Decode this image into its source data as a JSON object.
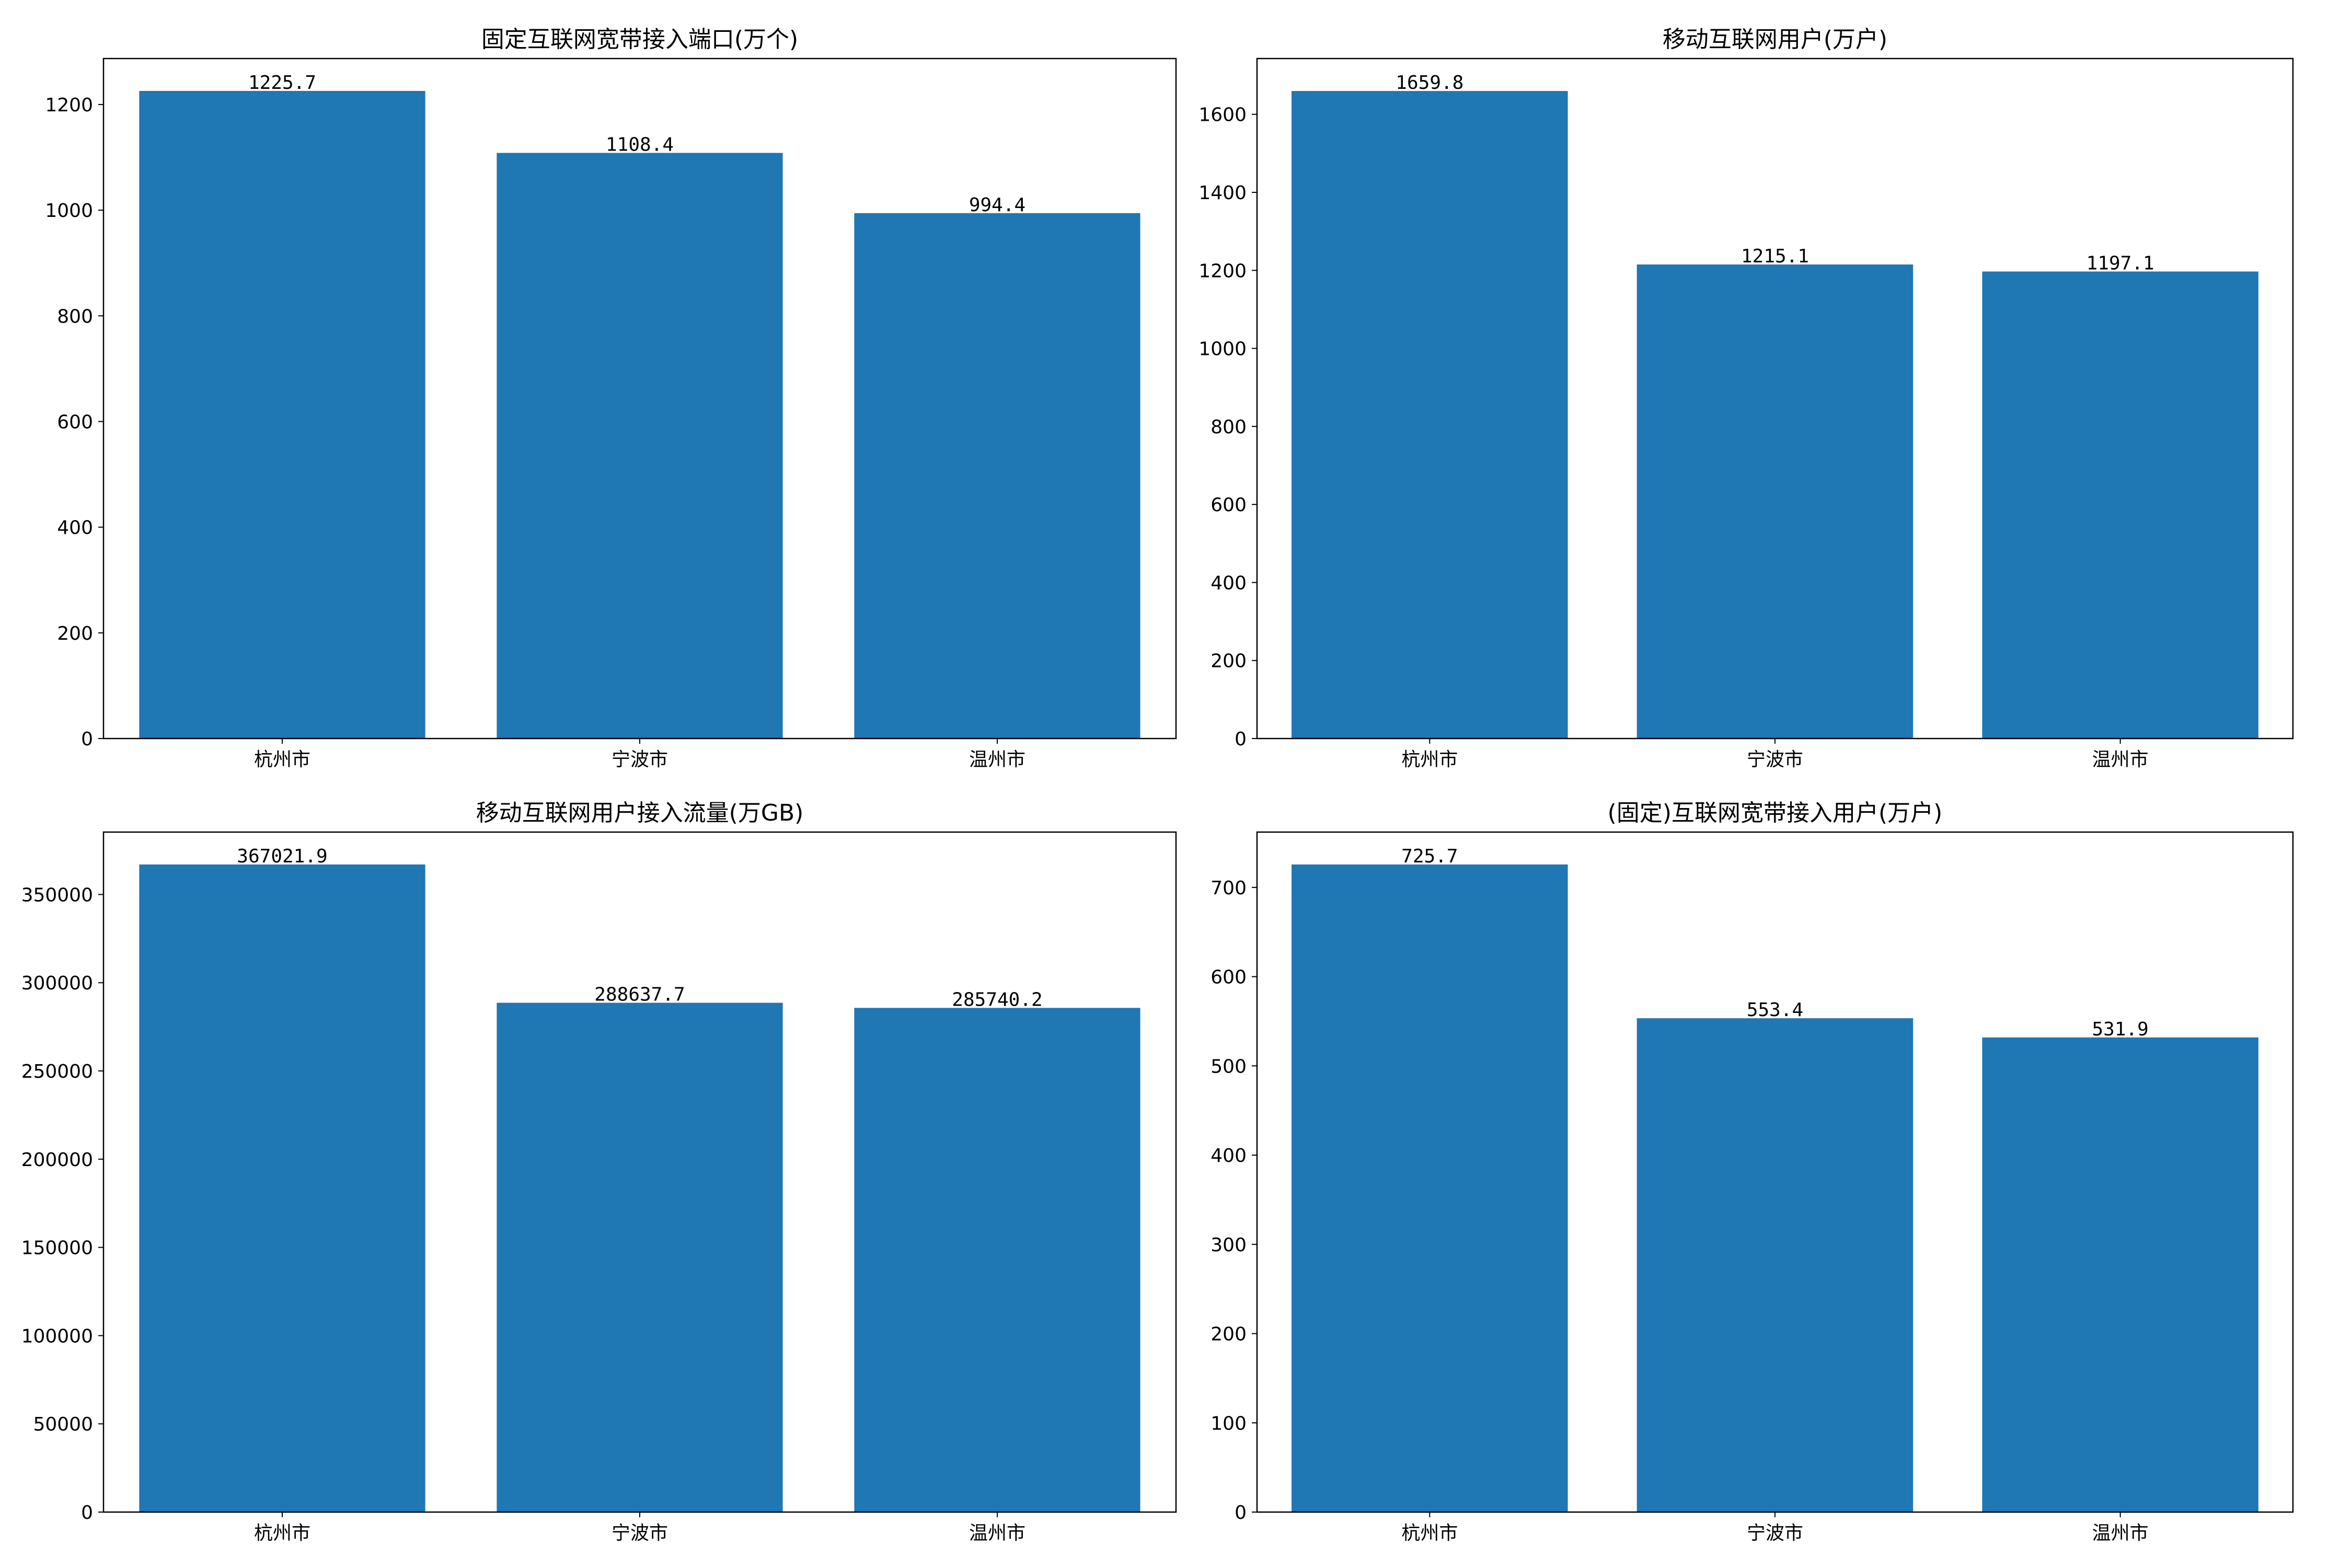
{
  "chart_data": [
    {
      "type": "bar",
      "title": "固定互联网宽带接入端口(万个)",
      "categories": [
        "杭州市",
        "宁波市",
        "温州市"
      ],
      "values": [
        1225.7,
        1108.4,
        994.4
      ],
      "value_labels": [
        "1225.7",
        "1108.4",
        "994.4"
      ],
      "ylim": [
        0,
        1287
      ],
      "yticks": [
        0,
        200,
        400,
        600,
        800,
        1000,
        1200
      ],
      "xlabel": "",
      "ylabel": "",
      "grid": false,
      "color": "#1f77b4"
    },
    {
      "type": "bar",
      "title": "移动互联网用户(万户)",
      "categories": [
        "杭州市",
        "宁波市",
        "温州市"
      ],
      "values": [
        1659.8,
        1215.1,
        1197.1
      ],
      "value_labels": [
        "1659.8",
        "1215.1",
        "1197.1"
      ],
      "ylim": [
        0,
        1743
      ],
      "yticks": [
        0,
        200,
        400,
        600,
        800,
        1000,
        1200,
        1400,
        1600
      ],
      "xlabel": "",
      "ylabel": "",
      "grid": false,
      "color": "#1f77b4"
    },
    {
      "type": "bar",
      "title": "移动互联网用户接入流量(万GB)",
      "categories": [
        "杭州市",
        "宁波市",
        "温州市"
      ],
      "values": [
        367021.9,
        288637.7,
        285740.2
      ],
      "value_labels": [
        "367021.9",
        "288637.7",
        "285740.2"
      ],
      "ylim": [
        0,
        385373
      ],
      "yticks": [
        0,
        50000,
        100000,
        150000,
        200000,
        250000,
        300000,
        350000
      ],
      "xlabel": "",
      "ylabel": "",
      "grid": false,
      "color": "#1f77b4"
    },
    {
      "type": "bar",
      "title": "(固定)互联网宽带接入用户(万户)",
      "categories": [
        "杭州市",
        "宁波市",
        "温州市"
      ],
      "values": [
        725.7,
        553.4,
        531.9
      ],
      "value_labels": [
        "725.7",
        "553.4",
        "531.9"
      ],
      "ylim": [
        0,
        762
      ],
      "yticks": [
        0,
        100,
        200,
        300,
        400,
        500,
        600,
        700
      ],
      "xlabel": "",
      "ylabel": "",
      "grid": false,
      "color": "#1f77b4"
    }
  ]
}
